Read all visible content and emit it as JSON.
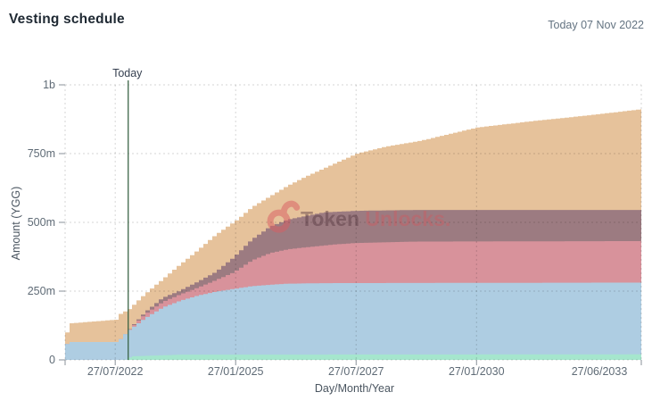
{
  "header": {
    "title": "Vesting schedule",
    "date_label": "Today 07 Nov 2022"
  },
  "watermark": {
    "icon": "unlock-icon",
    "brand_primary": "Token",
    "brand_secondary": "Unlocks.",
    "icon_color": "#d95f63"
  },
  "chart_data": {
    "type": "area",
    "stacked": true,
    "step_interpolation": true,
    "title": "Vesting schedule",
    "xlabel": "Day/Month/Year",
    "ylabel": "Amount (YGG)",
    "value_unit": "million YGG",
    "ylim_millions": [
      0,
      1000
    ],
    "x_range_years": [
      2021.53,
      2033.49
    ],
    "grid": "dashed",
    "legend": "none",
    "y_ticks": [
      {
        "label": "0",
        "value": 0
      },
      {
        "label": "250m",
        "value": 250
      },
      {
        "label": "500m",
        "value": 500
      },
      {
        "label": "750m",
        "value": 750
      },
      {
        "label": "1b",
        "value": 1000
      }
    ],
    "x_ticks": [
      {
        "label": "27/07/2022",
        "year": 2022.57
      },
      {
        "label": "27/01/2025",
        "year": 2025.07
      },
      {
        "label": "27/07/2027",
        "year": 2027.57
      },
      {
        "label": "27/01/2030",
        "year": 2030.07
      },
      {
        "label": "27/06/2033",
        "year": 2033.49
      }
    ],
    "today_marker": {
      "label": "Today",
      "year": 2022.84,
      "date": "07 Nov 2022",
      "color": "#2e5939"
    },
    "series_note": "cumulative = stacked top of each band in millions of YGG, listed bottom band first",
    "series": [
      {
        "name": "band-teal",
        "color": "#a5e6cd",
        "cumulative": [
          [
            2021.53,
            0
          ],
          [
            2022.72,
            0
          ],
          [
            2022.88,
            13
          ],
          [
            2023.88,
            19
          ],
          [
            2033.49,
            20
          ]
        ]
      },
      {
        "name": "band-blue",
        "color": "#aecde2",
        "cumulative": [
          [
            2021.53,
            58
          ],
          [
            2021.6,
            65
          ],
          [
            2022.59,
            65
          ],
          [
            2022.66,
            80
          ],
          [
            2022.74,
            95
          ],
          [
            2022.81,
            107
          ],
          [
            2023.14,
            150
          ],
          [
            2023.51,
            190
          ],
          [
            2023.88,
            215
          ],
          [
            2024.25,
            234
          ],
          [
            2024.62,
            248
          ],
          [
            2024.99,
            258
          ],
          [
            2025.37,
            268
          ],
          [
            2025.74,
            273
          ],
          [
            2026.11,
            277
          ],
          [
            2026.85,
            279
          ],
          [
            2033.49,
            281
          ]
        ]
      },
      {
        "name": "band-pink",
        "color": "#d8929b",
        "cumulative": [
          [
            2021.53,
            58
          ],
          [
            2021.6,
            65
          ],
          [
            2022.59,
            65
          ],
          [
            2022.66,
            80
          ],
          [
            2022.74,
            95
          ],
          [
            2022.81,
            108
          ],
          [
            2023.14,
            165
          ],
          [
            2023.51,
            210
          ],
          [
            2023.88,
            238
          ],
          [
            2024.25,
            263
          ],
          [
            2024.62,
            290
          ],
          [
            2024.99,
            318
          ],
          [
            2025.37,
            362
          ],
          [
            2025.74,
            388
          ],
          [
            2026.11,
            402
          ],
          [
            2026.48,
            409
          ],
          [
            2027.03,
            419
          ],
          [
            2027.55,
            425
          ],
          [
            2028.7,
            430
          ],
          [
            2033.49,
            432
          ]
        ]
      },
      {
        "name": "band-mauve",
        "color": "#9c7b81",
        "cumulative": [
          [
            2021.53,
            58
          ],
          [
            2021.6,
            65
          ],
          [
            2022.59,
            65
          ],
          [
            2022.66,
            80
          ],
          [
            2022.74,
            95
          ],
          [
            2022.81,
            109
          ],
          [
            2023.14,
            172
          ],
          [
            2023.51,
            225
          ],
          [
            2023.88,
            252
          ],
          [
            2024.25,
            285
          ],
          [
            2024.62,
            320
          ],
          [
            2024.99,
            373
          ],
          [
            2025.37,
            438
          ],
          [
            2025.74,
            484
          ],
          [
            2026.11,
            510
          ],
          [
            2026.48,
            523
          ],
          [
            2026.85,
            536
          ],
          [
            2027.55,
            542
          ],
          [
            2028.7,
            545
          ],
          [
            2033.49,
            545
          ]
        ]
      },
      {
        "name": "band-tan",
        "color": "#e6c29b",
        "cumulative": [
          [
            2021.53,
            100
          ],
          [
            2021.62,
            133
          ],
          [
            2022.55,
            146
          ],
          [
            2022.63,
            166
          ],
          [
            2022.72,
            175
          ],
          [
            2022.81,
            182
          ],
          [
            2023.14,
            238
          ],
          [
            2023.51,
            292
          ],
          [
            2023.88,
            347
          ],
          [
            2024.25,
            399
          ],
          [
            2024.62,
            455
          ],
          [
            2025.07,
            510
          ],
          [
            2025.37,
            555
          ],
          [
            2025.74,
            594
          ],
          [
            2026.11,
            633
          ],
          [
            2026.48,
            666
          ],
          [
            2026.85,
            695
          ],
          [
            2027.55,
            750
          ],
          [
            2028.14,
            775
          ],
          [
            2028.88,
            797
          ],
          [
            2030.05,
            845
          ],
          [
            2031.29,
            870
          ],
          [
            2032.4,
            890
          ],
          [
            2033.49,
            912
          ]
        ]
      }
    ]
  }
}
